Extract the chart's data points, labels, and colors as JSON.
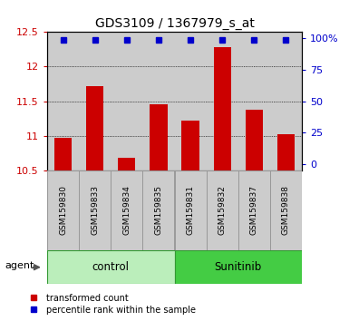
{
  "title": "GDS3109 / 1367979_s_at",
  "samples": [
    "GSM159830",
    "GSM159833",
    "GSM159834",
    "GSM159835",
    "GSM159831",
    "GSM159832",
    "GSM159837",
    "GSM159838"
  ],
  "bar_values": [
    10.97,
    11.72,
    10.68,
    11.45,
    11.22,
    12.28,
    11.37,
    11.02
  ],
  "percentile_values": [
    99,
    99,
    99,
    99,
    99,
    99,
    99,
    99
  ],
  "bar_color": "#cc0000",
  "dot_color": "#0000cc",
  "ymin": 10.5,
  "ymax": 12.5,
  "yticks_left": [
    10.5,
    11.0,
    11.5,
    12.0,
    12.5
  ],
  "yticks_right": [
    0,
    25,
    50,
    75,
    100
  ],
  "ytick_labels_left": [
    "10.5",
    "11",
    "11.5",
    "12",
    "12.5"
  ],
  "ytick_labels_right": [
    "0",
    "25",
    "50",
    "75",
    "100%"
  ],
  "control_color": "#bbeebb",
  "sunitinib_color": "#44cc44",
  "group_border_color": "#339933",
  "sample_bg_color": "#cccccc",
  "sample_border_color": "#999999",
  "legend_items": [
    {
      "label": "transformed count",
      "color": "#cc0000"
    },
    {
      "label": "percentile rank within the sample",
      "color": "#0000cc"
    }
  ],
  "left_tick_color": "#cc0000",
  "right_tick_color": "#0000cc",
  "title_fontsize": 10,
  "bar_width": 0.55
}
